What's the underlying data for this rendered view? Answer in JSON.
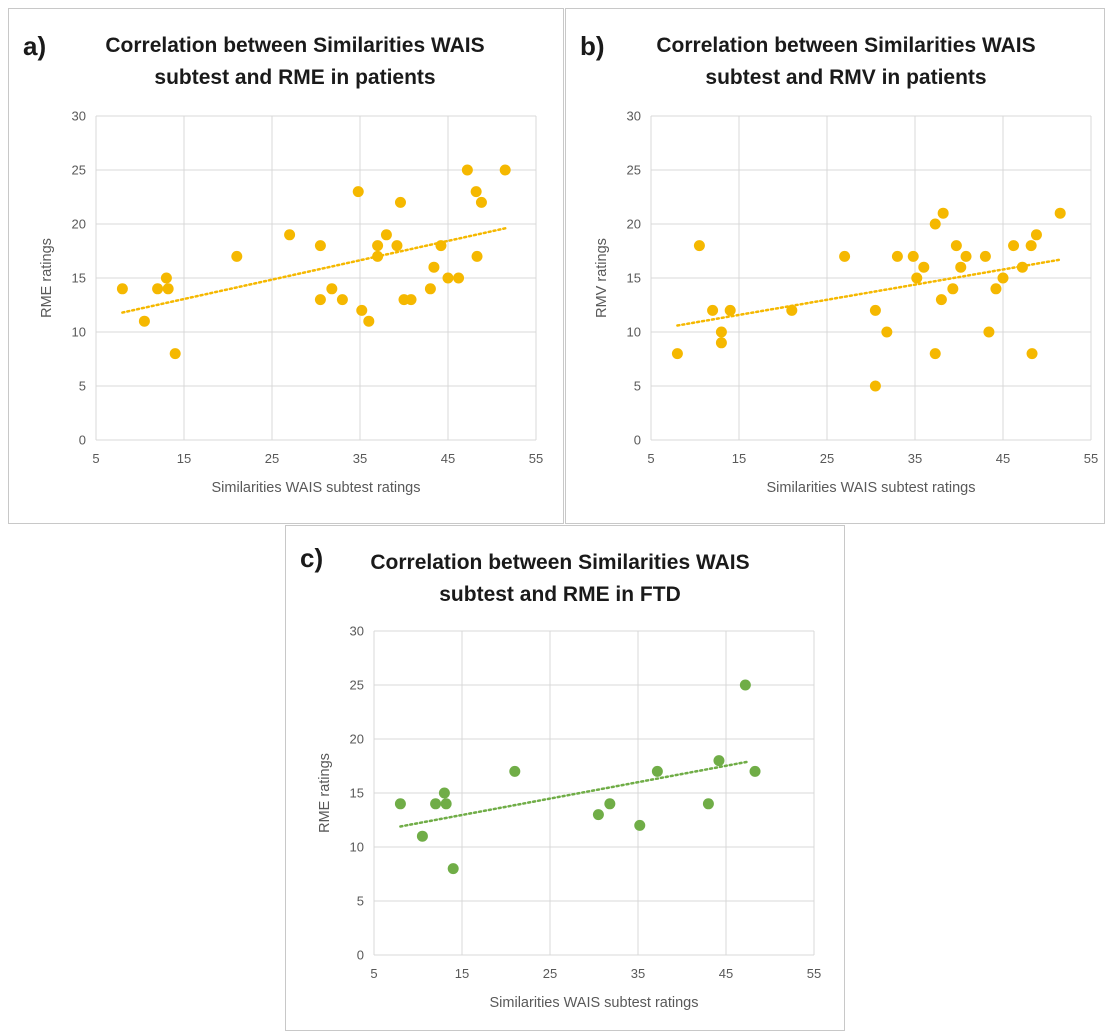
{
  "chart_data": [
    {
      "type": "scatter",
      "letter": "a)",
      "title_lines": [
        "Correlation between Similarities WAIS",
        "subtest and RME in patients"
      ],
      "xlabel": "Similarities WAIS subtest ratings",
      "ylabel": "RME ratings",
      "xlim": [
        5,
        55
      ],
      "ylim": [
        0,
        30
      ],
      "xticks": [
        "5",
        "15",
        "25",
        "35",
        "45",
        "55"
      ],
      "yticks": [
        "0",
        "5",
        "10",
        "15",
        "20",
        "25",
        "30"
      ],
      "grid": true,
      "color": "#f5b800",
      "trendline": {
        "style": "dotted",
        "x": [
          8,
          51.5
        ],
        "y": [
          11.8,
          19.6
        ]
      },
      "points": [
        [
          8,
          14
        ],
        [
          10.5,
          11
        ],
        [
          12,
          14
        ],
        [
          13,
          15
        ],
        [
          13.2,
          14
        ],
        [
          14,
          8
        ],
        [
          21,
          17
        ],
        [
          27,
          19
        ],
        [
          30.5,
          18
        ],
        [
          30.5,
          13
        ],
        [
          31.8,
          14
        ],
        [
          33,
          13
        ],
        [
          34.8,
          23
        ],
        [
          35.2,
          12
        ],
        [
          36,
          11
        ],
        [
          37,
          18
        ],
        [
          37,
          17
        ],
        [
          38,
          19
        ],
        [
          39.2,
          18
        ],
        [
          39.6,
          22
        ],
        [
          40,
          13
        ],
        [
          40.8,
          13
        ],
        [
          43,
          14
        ],
        [
          43.4,
          16
        ],
        [
          44.2,
          18
        ],
        [
          45,
          15
        ],
        [
          46.2,
          15
        ],
        [
          47.2,
          25
        ],
        [
          48.2,
          23
        ],
        [
          48.3,
          17
        ],
        [
          48.8,
          22
        ],
        [
          51.5,
          25
        ]
      ]
    },
    {
      "type": "scatter",
      "letter": "b)",
      "title_lines": [
        "Correlation between Similarities WAIS",
        "subtest and RMV in patients"
      ],
      "xlabel": "Similarities WAIS subtest ratings",
      "ylabel": "RMV ratings",
      "xlim": [
        5,
        55
      ],
      "ylim": [
        0,
        30
      ],
      "xticks": [
        "5",
        "15",
        "25",
        "35",
        "45",
        "55"
      ],
      "yticks": [
        "0",
        "5",
        "10",
        "15",
        "20",
        "25",
        "30"
      ],
      "grid": true,
      "color": "#f5b800",
      "trendline": {
        "style": "dotted",
        "x": [
          8,
          51.5
        ],
        "y": [
          10.6,
          16.7
        ]
      },
      "points": [
        [
          8,
          8
        ],
        [
          10.5,
          18
        ],
        [
          12,
          12
        ],
        [
          13,
          10
        ],
        [
          13,
          9
        ],
        [
          14,
          12
        ],
        [
          21,
          12
        ],
        [
          27,
          17
        ],
        [
          30.5,
          12
        ],
        [
          30.5,
          5
        ],
        [
          31.8,
          10
        ],
        [
          33,
          17
        ],
        [
          34.8,
          17
        ],
        [
          35.2,
          15
        ],
        [
          36,
          16
        ],
        [
          37.3,
          20
        ],
        [
          37.3,
          8
        ],
        [
          38,
          13
        ],
        [
          38.2,
          21
        ],
        [
          39.3,
          14
        ],
        [
          39.7,
          18
        ],
        [
          40.2,
          16
        ],
        [
          40.8,
          17
        ],
        [
          43,
          17
        ],
        [
          43.4,
          10
        ],
        [
          44.2,
          14
        ],
        [
          45,
          15
        ],
        [
          46.2,
          18
        ],
        [
          47.2,
          16
        ],
        [
          48.2,
          18
        ],
        [
          48.3,
          8
        ],
        [
          48.8,
          19
        ],
        [
          51.5,
          21
        ]
      ]
    },
    {
      "type": "scatter",
      "letter": "c)",
      "title_lines": [
        "Correlation between Similarities WAIS",
        "subtest and RME in FTD"
      ],
      "xlabel": "Similarities WAIS subtest ratings",
      "ylabel": "RME ratings",
      "xlim": [
        5,
        55
      ],
      "ylim": [
        0,
        30
      ],
      "xticks": [
        "5",
        "15",
        "25",
        "35",
        "45",
        "55"
      ],
      "yticks": [
        "0",
        "5",
        "10",
        "15",
        "20",
        "25",
        "30"
      ],
      "grid": true,
      "color": "#70ad47",
      "trendline": {
        "style": "dotted",
        "x": [
          8,
          47.5
        ],
        "y": [
          11.9,
          17.9
        ]
      },
      "points": [
        [
          8,
          14
        ],
        [
          10.5,
          11
        ],
        [
          12,
          14
        ],
        [
          13,
          15
        ],
        [
          13.2,
          14
        ],
        [
          14,
          8
        ],
        [
          21,
          17
        ],
        [
          30.5,
          13
        ],
        [
          31.8,
          14
        ],
        [
          35.2,
          12
        ],
        [
          37.2,
          17
        ],
        [
          43,
          14
        ],
        [
          44.2,
          18
        ],
        [
          47.2,
          25
        ],
        [
          48.3,
          17
        ]
      ]
    }
  ]
}
